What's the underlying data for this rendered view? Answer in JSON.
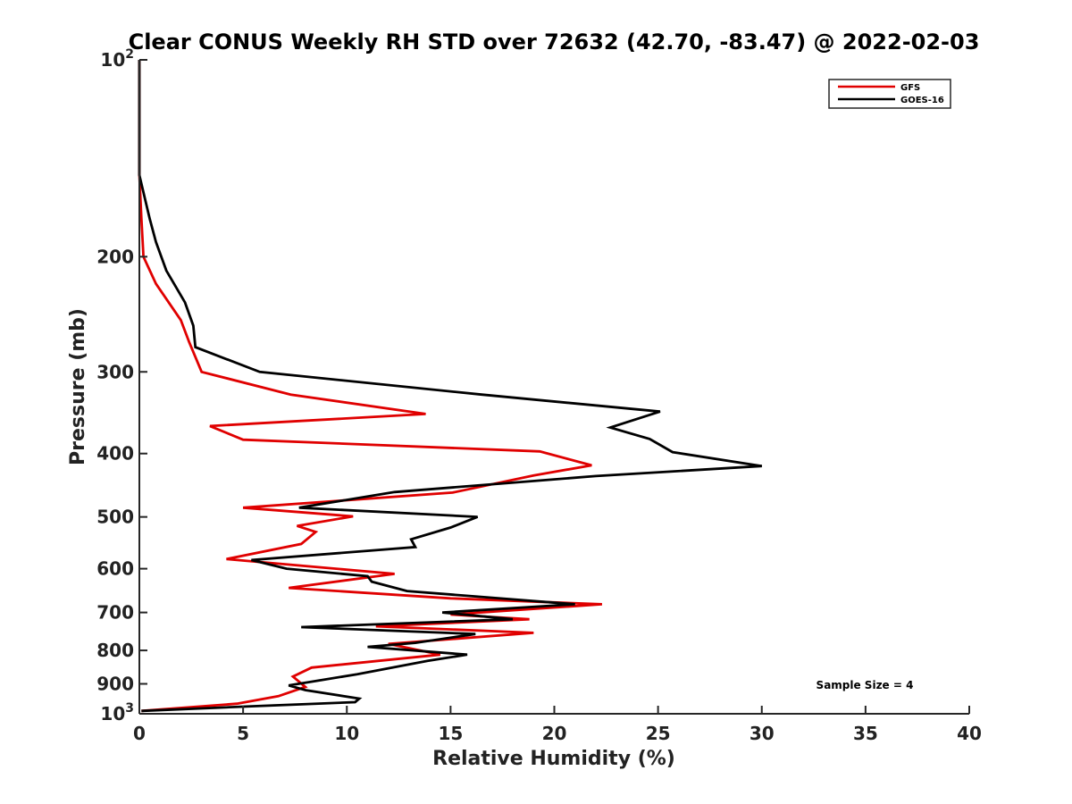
{
  "chart_data": {
    "type": "line",
    "title": "Clear CONUS Weekly RH STD over 72632 (42.70, -83.47) @ 2022-02-03",
    "xlabel": "Relative Humidity (%)",
    "ylabel": "Pressure (mb)",
    "xlim": [
      0,
      40
    ],
    "ylim": [
      100,
      1000
    ],
    "y_scale": "log",
    "y_reversed": true,
    "x_ticks": [
      "0",
      "5",
      "10",
      "15",
      "20",
      "25",
      "30",
      "35",
      "40"
    ],
    "y_ticks": [
      {
        "value": 100,
        "base": "10",
        "exp": "2"
      },
      {
        "value": 200,
        "label": "200"
      },
      {
        "value": 300,
        "label": "300"
      },
      {
        "value": 400,
        "label": "400"
      },
      {
        "value": 500,
        "label": "500"
      },
      {
        "value": 600,
        "label": "600"
      },
      {
        "value": 700,
        "label": "700"
      },
      {
        "value": 800,
        "label": "800"
      },
      {
        "value": 900,
        "label": "900"
      },
      {
        "value": 1000,
        "base": "10",
        "exp": "3"
      }
    ],
    "legend_position": "top-right",
    "grid": false,
    "annotation": "Sample Size = 4",
    "series": [
      {
        "name": "GFS",
        "color": "#e00000",
        "points": [
          [
            0,
            100
          ],
          [
            0,
            150
          ],
          [
            0.1,
            175
          ],
          [
            0.2,
            200
          ],
          [
            0.8,
            220
          ],
          [
            2.0,
            250
          ],
          [
            2.4,
            270
          ],
          [
            3.0,
            300
          ],
          [
            7.3,
            325
          ],
          [
            13.8,
            348
          ],
          [
            3.4,
            363
          ],
          [
            5.0,
            381
          ],
          [
            19.3,
            397
          ],
          [
            21.8,
            417
          ],
          [
            19.0,
            432
          ],
          [
            15.1,
            459
          ],
          [
            5.0,
            484
          ],
          [
            10.3,
            499
          ],
          [
            7.6,
            516
          ],
          [
            8.5,
            527
          ],
          [
            7.8,
            550
          ],
          [
            4.2,
            580
          ],
          [
            12.3,
            611
          ],
          [
            7.2,
            642
          ],
          [
            15.0,
            666
          ],
          [
            22.3,
            680
          ],
          [
            15.0,
            705
          ],
          [
            18.8,
            717
          ],
          [
            11.4,
            735
          ],
          [
            19.0,
            752
          ],
          [
            12.0,
            782
          ],
          [
            14.5,
            812
          ],
          [
            8.3,
            850
          ],
          [
            7.4,
            877
          ],
          [
            8.0,
            910
          ],
          [
            6.7,
            940
          ],
          [
            4.7,
            965
          ],
          [
            0.1,
            990
          ]
        ]
      },
      {
        "name": "GOES-16",
        "color": "#000000",
        "points": [
          [
            0,
            100
          ],
          [
            0,
            150
          ],
          [
            0.5,
            175
          ],
          [
            0.8,
            190
          ],
          [
            1.3,
            210
          ],
          [
            2.2,
            235
          ],
          [
            2.6,
            255
          ],
          [
            2.7,
            275
          ],
          [
            5.8,
            300
          ],
          [
            16.5,
            325
          ],
          [
            25.1,
            345
          ],
          [
            22.7,
            365
          ],
          [
            24.6,
            380
          ],
          [
            25.7,
            398
          ],
          [
            30.0,
            418
          ],
          [
            22.0,
            433
          ],
          [
            12.3,
            458
          ],
          [
            7.7,
            484
          ],
          [
            16.3,
            500
          ],
          [
            15.0,
            519
          ],
          [
            13.1,
            541
          ],
          [
            13.3,
            556
          ],
          [
            5.4,
            582
          ],
          [
            7.1,
            600
          ],
          [
            11.0,
            616
          ],
          [
            11.2,
            628
          ],
          [
            12.9,
            649
          ],
          [
            21.0,
            680
          ],
          [
            14.6,
            700
          ],
          [
            18.0,
            717
          ],
          [
            7.8,
            737
          ],
          [
            16.2,
            755
          ],
          [
            13.3,
            779
          ],
          [
            11.0,
            790
          ],
          [
            15.8,
            812
          ],
          [
            13.9,
            830
          ],
          [
            10.5,
            870
          ],
          [
            7.2,
            905
          ],
          [
            8.0,
            920
          ],
          [
            10.6,
            948
          ],
          [
            10.4,
            960
          ],
          [
            5.0,
            975
          ],
          [
            0.1,
            990
          ]
        ]
      }
    ]
  }
}
